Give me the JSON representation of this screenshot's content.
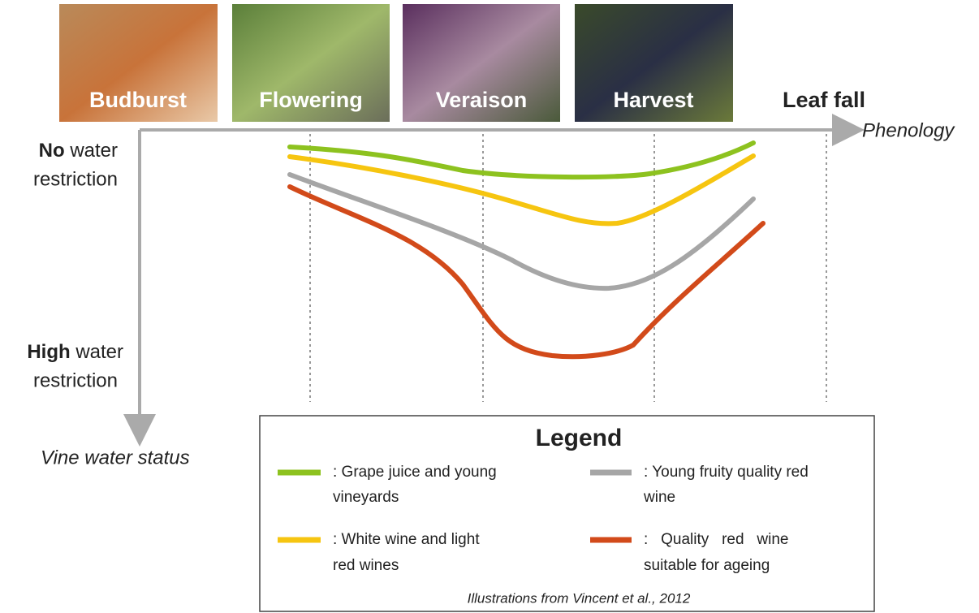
{
  "stages": [
    "Budburst",
    "Flowering",
    "Veraison",
    "Harvest",
    "Leaf fall"
  ],
  "x_axis_label": "Phenology",
  "y_axis_label": "Vine water status",
  "y_top": {
    "bold": "No",
    "rest": "water",
    "line2": "restriction"
  },
  "y_bottom": {
    "bold": "High",
    "rest": "water",
    "line2": "restriction"
  },
  "legend": {
    "title": "Legend",
    "items": [
      {
        "lines": [
          ": Grape juice and young",
          "vineyards"
        ]
      },
      {
        "lines": [
          ": Young fruity quality red",
          "wine"
        ]
      },
      {
        "lines": [
          ": White wine and light",
          "red wines"
        ]
      },
      {
        "lines": [
          ":   Quality   red   wine",
          "suitable for ageing"
        ]
      }
    ]
  },
  "credit": "Illustrations from Vincent et al., 2012"
}
